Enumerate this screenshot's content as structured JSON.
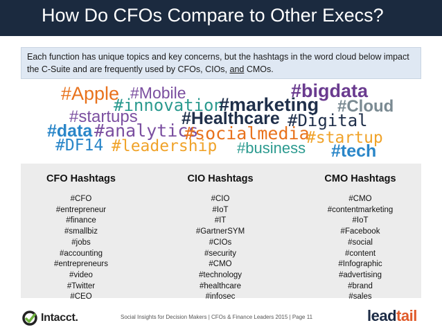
{
  "title": "How Do CFOs Compare to Other Execs?",
  "intro": {
    "before": "Each function has unique topics and key concerns, but the hashtags in the word cloud below impact the C-Suite and are frequently used by CFOs, CIOs, ",
    "underlined": "and",
    "after": " CMOs."
  },
  "word_cloud": [
    {
      "text": "#Apple",
      "color": "#e8721c"
    },
    {
      "text": "#Mobile",
      "color": "#7b4fa0"
    },
    {
      "text": "#innovation",
      "color": "#2b9a8f"
    },
    {
      "text": "#marketing",
      "color": "#1f2f4a"
    },
    {
      "text": "#bigdata",
      "color": "#6a3b8f"
    },
    {
      "text": "#Cloud",
      "color": "#7a8a92"
    },
    {
      "text": "#startups",
      "color": "#7b4fa0"
    },
    {
      "text": "#Healthcare",
      "color": "#1f2f4a"
    },
    {
      "text": "#Digital",
      "color": "#1f2f4a"
    },
    {
      "text": "#data",
      "color": "#2a86c8"
    },
    {
      "text": "#analytics",
      "color": "#7b4fa0"
    },
    {
      "text": "#socialmedia",
      "color": "#e8721c"
    },
    {
      "text": "#DF14",
      "color": "#2a86c8"
    },
    {
      "text": "#leadership",
      "color": "#f0a32a"
    },
    {
      "text": "#business",
      "color": "#2b9a8f"
    },
    {
      "text": "#startup",
      "color": "#f0a32a"
    },
    {
      "text": "#tech",
      "color": "#2a86c8"
    }
  ],
  "columns": [
    {
      "heading": "CFO Hashtags",
      "items": [
        "#CFO",
        "#entrepreneur",
        "#finance",
        "#smallbiz",
        "#jobs",
        "#accounting",
        "#entrepreneurs",
        "#video",
        "#Twitter",
        "#CEO"
      ]
    },
    {
      "heading": "CIO Hashtags",
      "items": [
        "#CIO",
        "#IoT",
        "#IT",
        "#GartnerSYM",
        "#CIOs",
        "#security",
        "#CMO",
        "#technology",
        "#healthcare",
        "#infosec"
      ]
    },
    {
      "heading": "CMO Hashtags",
      "items": [
        "#CMO",
        "#contentmarketing",
        "#IoT",
        "#Facebook",
        "#social",
        "#content",
        "#Infographic",
        "#advertising",
        "#brand",
        "#sales"
      ]
    }
  ],
  "footer": {
    "logo_text": "Intacct.",
    "caption": "Social Insights for Decision Makers  |  CFOs & Finance Leaders 2015  |  Page 11",
    "brand_lead": "lead",
    "brand_tail": "tail",
    "logo_icon": "intacct-swirl-icon"
  }
}
